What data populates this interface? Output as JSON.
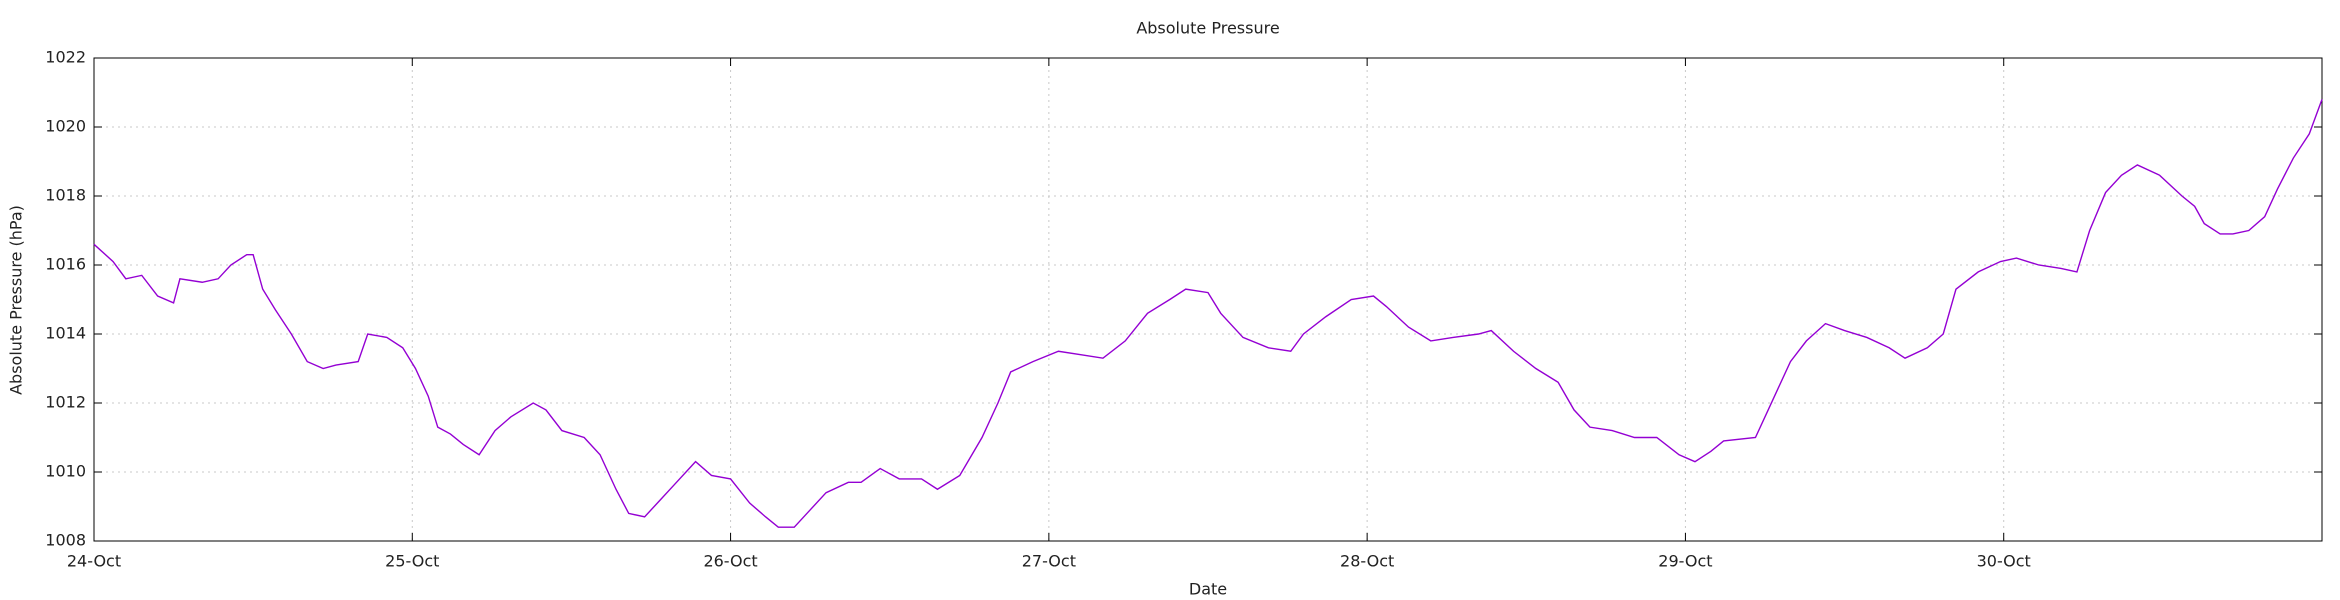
{
  "chart_data": {
    "type": "line",
    "title": "Absolute Pressure",
    "x_label": "Date",
    "y_label": "Absolute Pressure (hPa)",
    "xlim": [
      0,
      7
    ],
    "xticks": [
      {
        "value": 0,
        "label": "24-Oct"
      },
      {
        "value": 1,
        "label": "25-Oct"
      },
      {
        "value": 2,
        "label": "26-Oct"
      },
      {
        "value": 3,
        "label": "27-Oct"
      },
      {
        "value": 4,
        "label": "28-Oct"
      },
      {
        "value": 5,
        "label": "29-Oct"
      },
      {
        "value": 6,
        "label": "30-Oct"
      }
    ],
    "ylim": [
      1008,
      1022
    ],
    "yticks": [
      1008,
      1010,
      1012,
      1014,
      1016,
      1018,
      1020,
      1022
    ],
    "grid": true,
    "x": [
      0,
      0.06,
      0.1,
      0.15,
      0.2,
      0.25,
      0.27,
      0.34,
      0.39,
      0.43,
      0.48,
      0.5,
      0.53,
      0.57,
      0.62,
      0.67,
      0.72,
      0.76,
      0.83,
      0.86,
      0.92,
      0.97,
      1.01,
      1.05,
      1.08,
      1.12,
      1.16,
      1.21,
      1.26,
      1.31,
      1.38,
      1.42,
      1.47,
      1.54,
      1.59,
      1.64,
      1.68,
      1.73,
      1.78,
      1.82,
      1.89,
      1.94,
      2.0,
      2.06,
      2.11,
      2.15,
      2.2,
      2.25,
      2.3,
      2.37,
      2.41,
      2.47,
      2.53,
      2.6,
      2.65,
      2.72,
      2.79,
      2.84,
      2.88,
      2.95,
      3.03,
      3.1,
      3.17,
      3.24,
      3.31,
      3.38,
      3.43,
      3.5,
      3.54,
      3.61,
      3.69,
      3.76,
      3.8,
      3.87,
      3.95,
      4.02,
      4.06,
      4.13,
      4.2,
      4.27,
      4.35,
      4.39,
      4.46,
      4.53,
      4.6,
      4.65,
      4.7,
      4.77,
      4.84,
      4.91,
      4.98,
      5.03,
      5.08,
      5.12,
      5.22,
      5.26,
      5.33,
      5.38,
      5.44,
      5.5,
      5.57,
      5.64,
      5.69,
      5.76,
      5.81,
      5.85,
      5.92,
      5.99,
      6.04,
      6.11,
      6.18,
      6.23,
      6.27,
      6.32,
      6.37,
      6.42,
      6.49,
      6.56,
      6.6,
      6.63,
      6.68,
      6.72,
      6.77,
      6.82,
      6.86,
      6.91,
      6.96,
      7.0
    ],
    "series": [
      {
        "color": "#9400d3",
        "values": [
          1016.6,
          1016.1,
          1015.6,
          1015.7,
          1015.1,
          1014.9,
          1015.6,
          1015.5,
          1015.6,
          1016.0,
          1016.3,
          1016.3,
          1015.3,
          1014.7,
          1014.0,
          1013.2,
          1013.0,
          1013.1,
          1013.2,
          1014.0,
          1013.9,
          1013.6,
          1013.0,
          1012.2,
          1011.3,
          1011.1,
          1010.8,
          1010.5,
          1011.2,
          1011.6,
          1012.0,
          1011.8,
          1011.2,
          1011.0,
          1010.5,
          1009.5,
          1008.8,
          1008.7,
          1009.2,
          1009.6,
          1010.3,
          1009.9,
          1009.8,
          1009.1,
          1008.7,
          1008.4,
          1008.4,
          1008.9,
          1009.4,
          1009.7,
          1009.7,
          1010.1,
          1009.8,
          1009.8,
          1009.5,
          1009.9,
          1011.0,
          1012.0,
          1012.9,
          1013.2,
          1013.5,
          1013.4,
          1013.3,
          1013.8,
          1014.6,
          1015.0,
          1015.3,
          1015.2,
          1014.6,
          1013.9,
          1013.6,
          1013.5,
          1014.0,
          1014.5,
          1015.0,
          1015.1,
          1014.8,
          1014.2,
          1013.8,
          1013.9,
          1014.0,
          1014.1,
          1013.5,
          1013.0,
          1012.6,
          1011.8,
          1011.3,
          1011.2,
          1011.0,
          1011.0,
          1010.5,
          1010.3,
          1010.6,
          1010.9,
          1011.0,
          1011.8,
          1013.2,
          1013.8,
          1014.3,
          1014.1,
          1013.9,
          1013.6,
          1013.3,
          1013.6,
          1014.0,
          1015.3,
          1015.8,
          1016.1,
          1016.2,
          1016.0,
          1015.9,
          1015.8,
          1017.0,
          1018.1,
          1018.6,
          1018.9,
          1018.6,
          1018.0,
          1017.7,
          1017.2,
          1016.9,
          1016.9,
          1017.0,
          1017.4,
          1018.2,
          1019.1,
          1019.8,
          1020.8
        ]
      }
    ]
  }
}
